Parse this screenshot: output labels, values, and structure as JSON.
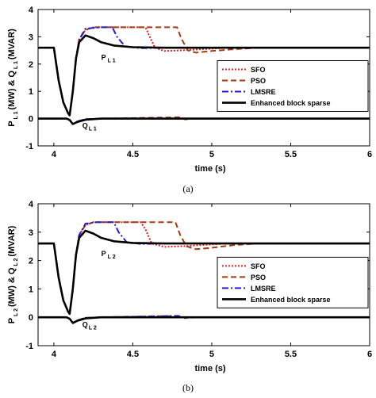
{
  "chart_data": [
    {
      "type": "line",
      "caption": "(a)",
      "xlabel": "time (s)",
      "ylabel": {
        "part1": "P",
        "sub1": "L 1",
        "part2": "(MW) & Q",
        "sub2": "L 1",
        "part3": "(MVAR)"
      },
      "xlim": [
        3.9,
        6.0
      ],
      "ylim": [
        -1,
        4
      ],
      "xticks": [
        4,
        4.5,
        5,
        5.5,
        6
      ],
      "yticks": [
        -1,
        0,
        1,
        2,
        3,
        4
      ],
      "grid": false,
      "legend_position": "right",
      "annotations": [
        {
          "main": "P",
          "sub": "L 1",
          "x": 4.3,
          "y": 2.15
        },
        {
          "main": "Q",
          "sub": "L 1",
          "x": 4.18,
          "y": -0.35
        }
      ],
      "series": [
        {
          "name": "SFO",
          "color": "#e02020",
          "dash": "2,2",
          "width": 2,
          "P": [
            [
              3.9,
              2.6
            ],
            [
              4.0,
              2.6
            ],
            [
              4.01,
              2.2
            ],
            [
              4.03,
              1.4
            ],
            [
              4.06,
              0.6
            ],
            [
              4.09,
              0.2
            ],
            [
              4.1,
              0.12
            ],
            [
              4.12,
              1.0
            ],
            [
              4.14,
              2.2
            ],
            [
              4.16,
              2.9
            ],
            [
              4.2,
              3.25
            ],
            [
              4.25,
              3.35
            ],
            [
              4.4,
              3.35
            ],
            [
              4.58,
              3.35
            ],
            [
              4.6,
              3.1
            ],
            [
              4.64,
              2.6
            ],
            [
              4.7,
              2.48
            ],
            [
              4.8,
              2.5
            ],
            [
              4.95,
              2.55
            ],
            [
              5.1,
              2.6
            ],
            [
              6.0,
              2.6
            ]
          ],
          "Q": [
            [
              3.9,
              0
            ],
            [
              4.08,
              0
            ],
            [
              4.1,
              -0.05
            ],
            [
              4.12,
              -0.2
            ],
            [
              4.15,
              -0.1
            ],
            [
              4.2,
              -0.02
            ],
            [
              4.3,
              0
            ],
            [
              6.0,
              0
            ]
          ]
        },
        {
          "name": "PSO",
          "color": "#a33a10",
          "dash": "7,4",
          "width": 2,
          "P": [
            [
              3.9,
              2.6
            ],
            [
              4.0,
              2.6
            ],
            [
              4.01,
              2.2
            ],
            [
              4.03,
              1.4
            ],
            [
              4.06,
              0.6
            ],
            [
              4.09,
              0.2
            ],
            [
              4.1,
              0.12
            ],
            [
              4.12,
              1.0
            ],
            [
              4.14,
              2.2
            ],
            [
              4.16,
              2.9
            ],
            [
              4.2,
              3.25
            ],
            [
              4.25,
              3.35
            ],
            [
              4.5,
              3.35
            ],
            [
              4.78,
              3.35
            ],
            [
              4.81,
              2.9
            ],
            [
              4.85,
              2.5
            ],
            [
              4.9,
              2.42
            ],
            [
              5.0,
              2.48
            ],
            [
              5.15,
              2.55
            ],
            [
              5.3,
              2.6
            ],
            [
              6.0,
              2.6
            ]
          ],
          "Q": [
            [
              3.9,
              0
            ],
            [
              4.08,
              0
            ],
            [
              4.1,
              -0.05
            ],
            [
              4.12,
              -0.2
            ],
            [
              4.15,
              -0.1
            ],
            [
              4.2,
              -0.02
            ],
            [
              4.3,
              0
            ],
            [
              4.8,
              0.05
            ],
            [
              4.83,
              -0.03
            ],
            [
              4.9,
              0
            ],
            [
              6.0,
              0
            ]
          ]
        },
        {
          "name": "LMSRE",
          "color": "#2020d0",
          "dash": "8,3,2,3",
          "width": 2,
          "P": [
            [
              3.9,
              2.6
            ],
            [
              4.0,
              2.6
            ],
            [
              4.01,
              2.2
            ],
            [
              4.03,
              1.4
            ],
            [
              4.06,
              0.6
            ],
            [
              4.09,
              0.2
            ],
            [
              4.1,
              0.12
            ],
            [
              4.12,
              1.0
            ],
            [
              4.14,
              2.2
            ],
            [
              4.16,
              2.9
            ],
            [
              4.2,
              3.3
            ],
            [
              4.3,
              3.35
            ],
            [
              4.37,
              3.35
            ],
            [
              4.4,
              3.0
            ],
            [
              4.45,
              2.65
            ],
            [
              4.55,
              2.58
            ],
            [
              4.7,
              2.6
            ],
            [
              6.0,
              2.6
            ]
          ],
          "Q": [
            [
              3.9,
              0
            ],
            [
              4.08,
              0
            ],
            [
              4.1,
              -0.05
            ],
            [
              4.12,
              -0.2
            ],
            [
              4.15,
              -0.1
            ],
            [
              4.2,
              -0.02
            ],
            [
              4.3,
              0
            ],
            [
              6.0,
              0
            ]
          ]
        },
        {
          "name": "Enhanced block sparse",
          "color": "#000000",
          "dash": "",
          "width": 2.6,
          "P": [
            [
              3.9,
              2.6
            ],
            [
              4.0,
              2.6
            ],
            [
              4.01,
              2.2
            ],
            [
              4.03,
              1.4
            ],
            [
              4.06,
              0.6
            ],
            [
              4.09,
              0.2
            ],
            [
              4.1,
              0.12
            ],
            [
              4.12,
              1.0
            ],
            [
              4.14,
              2.2
            ],
            [
              4.16,
              2.8
            ],
            [
              4.2,
              3.05
            ],
            [
              4.25,
              2.95
            ],
            [
              4.3,
              2.8
            ],
            [
              4.38,
              2.68
            ],
            [
              4.5,
              2.62
            ],
            [
              4.7,
              2.6
            ],
            [
              6.0,
              2.6
            ]
          ],
          "Q": [
            [
              3.9,
              0
            ],
            [
              4.08,
              0
            ],
            [
              4.1,
              -0.05
            ],
            [
              4.12,
              -0.2
            ],
            [
              4.15,
              -0.12
            ],
            [
              4.2,
              -0.04
            ],
            [
              4.3,
              0
            ],
            [
              6.0,
              0
            ]
          ]
        }
      ]
    },
    {
      "type": "line",
      "caption": "(b)",
      "xlabel": "time (s)",
      "ylabel": {
        "part1": "P",
        "sub1": "L 2",
        "part2": "(MW) & Q",
        "sub2": "L 2",
        "part3": "(MVAR)"
      },
      "xlim": [
        3.9,
        6.0
      ],
      "ylim": [
        -1,
        4
      ],
      "xticks": [
        4,
        4.5,
        5,
        5.5,
        6
      ],
      "yticks": [
        -1,
        0,
        1,
        2,
        3,
        4
      ],
      "grid": false,
      "legend_position": "right",
      "annotations": [
        {
          "main": "P",
          "sub": "L 2",
          "x": 4.3,
          "y": 2.15
        },
        {
          "main": "Q",
          "sub": "L 2",
          "x": 4.18,
          "y": -0.35
        }
      ],
      "series": [
        {
          "name": "SFO",
          "color": "#e02020",
          "dash": "2,2",
          "width": 2,
          "P": [
            [
              3.9,
              2.6
            ],
            [
              4.0,
              2.6
            ],
            [
              4.01,
              2.2
            ],
            [
              4.03,
              1.4
            ],
            [
              4.06,
              0.6
            ],
            [
              4.09,
              0.2
            ],
            [
              4.1,
              0.12
            ],
            [
              4.12,
              1.0
            ],
            [
              4.14,
              2.2
            ],
            [
              4.16,
              2.9
            ],
            [
              4.2,
              3.25
            ],
            [
              4.25,
              3.35
            ],
            [
              4.4,
              3.35
            ],
            [
              4.55,
              3.35
            ],
            [
              4.58,
              3.1
            ],
            [
              4.62,
              2.6
            ],
            [
              4.7,
              2.48
            ],
            [
              4.8,
              2.5
            ],
            [
              4.95,
              2.55
            ],
            [
              5.1,
              2.6
            ],
            [
              6.0,
              2.6
            ]
          ],
          "Q": [
            [
              3.9,
              0
            ],
            [
              4.08,
              0
            ],
            [
              4.1,
              -0.05
            ],
            [
              4.12,
              -0.2
            ],
            [
              4.15,
              -0.1
            ],
            [
              4.2,
              -0.02
            ],
            [
              4.3,
              0
            ],
            [
              6.0,
              0
            ]
          ]
        },
        {
          "name": "PSO",
          "color": "#a33a10",
          "dash": "7,4",
          "width": 2,
          "P": [
            [
              3.9,
              2.6
            ],
            [
              4.0,
              2.6
            ],
            [
              4.01,
              2.2
            ],
            [
              4.03,
              1.4
            ],
            [
              4.06,
              0.6
            ],
            [
              4.09,
              0.2
            ],
            [
              4.1,
              0.12
            ],
            [
              4.12,
              1.0
            ],
            [
              4.14,
              2.2
            ],
            [
              4.16,
              2.9
            ],
            [
              4.2,
              3.25
            ],
            [
              4.25,
              3.35
            ],
            [
              4.5,
              3.35
            ],
            [
              4.77,
              3.35
            ],
            [
              4.8,
              2.9
            ],
            [
              4.84,
              2.5
            ],
            [
              4.9,
              2.4
            ],
            [
              5.0,
              2.45
            ],
            [
              5.15,
              2.55
            ],
            [
              5.3,
              2.6
            ],
            [
              6.0,
              2.6
            ]
          ],
          "Q": [
            [
              3.9,
              0
            ],
            [
              4.08,
              0
            ],
            [
              4.1,
              -0.05
            ],
            [
              4.12,
              -0.2
            ],
            [
              4.15,
              -0.1
            ],
            [
              4.2,
              -0.02
            ],
            [
              4.3,
              0
            ],
            [
              4.8,
              0.05
            ],
            [
              4.83,
              -0.03
            ],
            [
              4.9,
              0
            ],
            [
              6.0,
              0
            ]
          ]
        },
        {
          "name": "LMSRE",
          "color": "#2020d0",
          "dash": "8,3,2,3",
          "width": 2,
          "P": [
            [
              3.9,
              2.6
            ],
            [
              4.0,
              2.6
            ],
            [
              4.01,
              2.2
            ],
            [
              4.03,
              1.4
            ],
            [
              4.06,
              0.6
            ],
            [
              4.09,
              0.2
            ],
            [
              4.1,
              0.12
            ],
            [
              4.12,
              1.0
            ],
            [
              4.14,
              2.2
            ],
            [
              4.16,
              2.9
            ],
            [
              4.2,
              3.3
            ],
            [
              4.27,
              3.35
            ],
            [
              4.38,
              3.35
            ],
            [
              4.41,
              3.0
            ],
            [
              4.46,
              2.65
            ],
            [
              4.55,
              2.58
            ],
            [
              4.7,
              2.6
            ],
            [
              6.0,
              2.6
            ]
          ],
          "Q": [
            [
              3.9,
              0
            ],
            [
              4.08,
              0
            ],
            [
              4.1,
              -0.05
            ],
            [
              4.12,
              -0.2
            ],
            [
              4.15,
              -0.1
            ],
            [
              4.2,
              -0.02
            ],
            [
              4.3,
              0
            ],
            [
              4.78,
              0.05
            ],
            [
              4.82,
              0
            ],
            [
              6.0,
              0
            ]
          ]
        },
        {
          "name": "Enhanced block sparse",
          "color": "#000000",
          "dash": "",
          "width": 2.6,
          "P": [
            [
              3.9,
              2.6
            ],
            [
              4.0,
              2.6
            ],
            [
              4.01,
              2.2
            ],
            [
              4.03,
              1.4
            ],
            [
              4.06,
              0.6
            ],
            [
              4.09,
              0.2
            ],
            [
              4.1,
              0.12
            ],
            [
              4.12,
              1.0
            ],
            [
              4.14,
              2.2
            ],
            [
              4.16,
              2.8
            ],
            [
              4.2,
              3.05
            ],
            [
              4.25,
              2.95
            ],
            [
              4.3,
              2.8
            ],
            [
              4.38,
              2.68
            ],
            [
              4.5,
              2.62
            ],
            [
              4.7,
              2.6
            ],
            [
              6.0,
              2.6
            ]
          ],
          "Q": [
            [
              3.9,
              0
            ],
            [
              4.08,
              0
            ],
            [
              4.1,
              -0.05
            ],
            [
              4.12,
              -0.2
            ],
            [
              4.15,
              -0.12
            ],
            [
              4.2,
              -0.04
            ],
            [
              4.3,
              0
            ],
            [
              6.0,
              0
            ]
          ]
        }
      ]
    }
  ]
}
